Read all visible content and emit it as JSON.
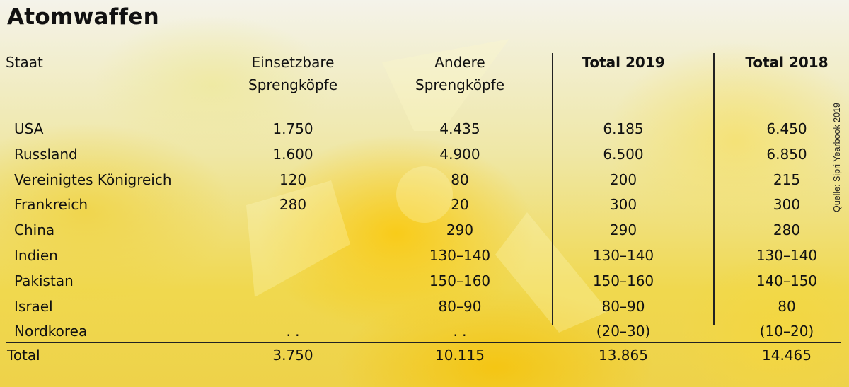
{
  "title": "Atomwaffen",
  "source": "Quelle: Sipri Yearbook 2019",
  "chart_data": {
    "type": "table",
    "columns": [
      {
        "lines": [
          "Staat"
        ],
        "bold": false
      },
      {
        "lines": [
          "Einsetzbare",
          "Sprengköpfe"
        ],
        "bold": false
      },
      {
        "lines": [
          "Andere",
          "Sprengköpfe"
        ],
        "bold": false
      },
      {
        "lines": [
          "Total 2019"
        ],
        "bold": true
      },
      {
        "lines": [
          "Total 2018"
        ],
        "bold": true
      }
    ],
    "rows": [
      {
        "state": "USA",
        "deployed": "1.750",
        "other": "4.435",
        "total_2019": "6.185",
        "total_2018": "6.450"
      },
      {
        "state": "Russland",
        "deployed": "1.600",
        "other": "4.900",
        "total_2019": "6.500",
        "total_2018": "6.850"
      },
      {
        "state": "Vereinigtes Königreich",
        "deployed": "120",
        "other": "80",
        "total_2019": "200",
        "total_2018": "215"
      },
      {
        "state": "Frankreich",
        "deployed": "280",
        "other": "20",
        "total_2019": "300",
        "total_2018": "300"
      },
      {
        "state": "China",
        "deployed": "",
        "other": "290",
        "total_2019": "290",
        "total_2018": "280"
      },
      {
        "state": "Indien",
        "deployed": "",
        "other": "130–140",
        "total_2019": "130–140",
        "total_2018": "130–140"
      },
      {
        "state": "Pakistan",
        "deployed": "",
        "other": "150–160",
        "total_2019": "150–160",
        "total_2018": "140–150"
      },
      {
        "state": "Israel",
        "deployed": "",
        "other": "80–90",
        "total_2019": "80–90",
        "total_2018": "80"
      },
      {
        "state": "Nordkorea",
        "deployed": ". .",
        "other": ". .",
        "total_2019": "(20–30)",
        "total_2018": "(10–20)"
      }
    ],
    "total": {
      "state": "Total",
      "deployed": "3.750",
      "other": "10.115",
      "total_2019": "13.865",
      "total_2018": "14.465"
    }
  }
}
